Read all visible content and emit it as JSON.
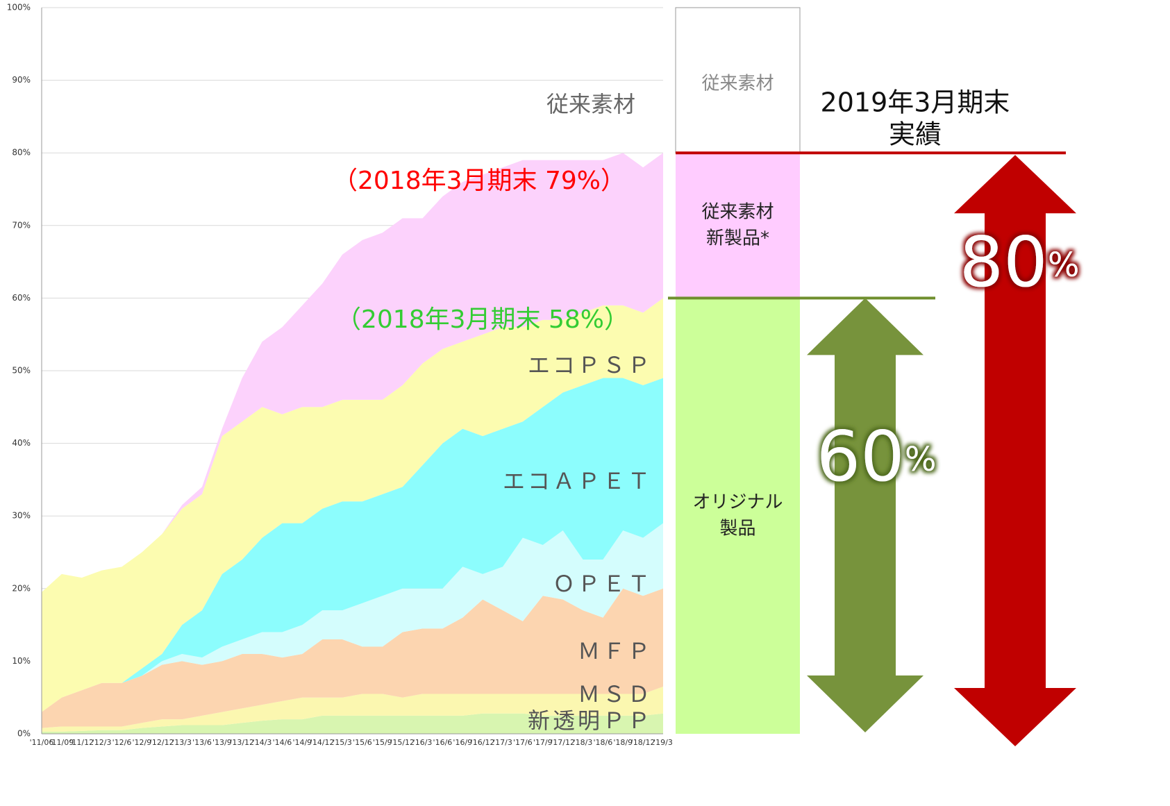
{
  "chart_data": {
    "type": "stacked_area",
    "x": [
      "'11/06",
      "'11/09",
      "'11/12",
      "'12/3",
      "'12/6",
      "'12/9",
      "'12/12",
      "'13/3",
      "'13/6",
      "'13/9",
      "'13/12",
      "'14/3",
      "'14/6",
      "'14/9",
      "'14/12",
      "'15/3",
      "'15/6",
      "'15/9",
      "'15/12",
      "'16/3",
      "'16/6",
      "'16/9",
      "'16/12",
      "'17/3",
      "'17/6",
      "'17/9",
      "'17/12",
      "'18/3",
      "'18/6",
      "'18/9",
      "'18/12",
      "'19/3"
    ],
    "series": [
      {
        "name": "新透明ＰＰ",
        "color": "#d8f5b0",
        "values": [
          0.3,
          0.3,
          0.4,
          0.5,
          0.5,
          0.8,
          1,
          1.2,
          1.2,
          1.2,
          1.5,
          1.8,
          2,
          2,
          2.5,
          2.5,
          2.5,
          2.5,
          2.5,
          2.5,
          2.5,
          2.5,
          2.8,
          2.8,
          2.8,
          2.5,
          2.5,
          2.5,
          2.5,
          2.5,
          2.5,
          2.8
        ]
      },
      {
        "name": "ＭＳＤ",
        "color": "#fbf7b0",
        "values": [
          0.5,
          0.7,
          0.6,
          0.5,
          0.5,
          0.7,
          1,
          0.8,
          1.3,
          1.8,
          2,
          2.2,
          2.5,
          3,
          2.5,
          2.5,
          3,
          3,
          2.5,
          3,
          3,
          3,
          2.7,
          2.7,
          2.7,
          3,
          3,
          3,
          3,
          3,
          3,
          3.7
        ]
      },
      {
        "name": "ＭＦＰ",
        "color": "#fcd5b0",
        "values": [
          2.2,
          4,
          5,
          6,
          6,
          6.5,
          7.5,
          8,
          7,
          7,
          7.5,
          7,
          6,
          6,
          8,
          8,
          6.5,
          6.5,
          9,
          9,
          9,
          10.5,
          13,
          11.5,
          10,
          13.5,
          13,
          11.5,
          10.5,
          14.5,
          13.5,
          13.5
        ]
      },
      {
        "name": "ＯＰＥＴ",
        "color": "#d4fdfd",
        "values": [
          0,
          0,
          0,
          0,
          0,
          0,
          0.5,
          1,
          1,
          2,
          2,
          3,
          3.5,
          4,
          4,
          4,
          6,
          7,
          6,
          5.5,
          5.5,
          7,
          3.5,
          6,
          11.5,
          7,
          9.5,
          7,
          8,
          8,
          8,
          9
        ]
      },
      {
        "name": "エコＡＰＥＴ",
        "color": "#8cfdfd",
        "values": [
          0,
          0,
          0,
          0,
          0,
          1,
          1,
          4,
          6.5,
          10,
          11,
          13,
          15,
          14,
          14,
          15,
          14,
          14,
          14,
          17,
          20,
          19,
          19,
          19,
          16,
          19,
          19,
          24,
          25,
          21,
          21,
          20
        ]
      },
      {
        "name": "エコＰＳＰ",
        "color": "#fcfcb0",
        "values": [
          16.5,
          17,
          15.5,
          15.5,
          16,
          16,
          16.5,
          16,
          16,
          19,
          19,
          18,
          15,
          16,
          14,
          14,
          14,
          13,
          14,
          14,
          13,
          12,
          14,
          14,
          13,
          12,
          10,
          10,
          10,
          10,
          10,
          11
        ]
      },
      {
        "color": "#fcd2fc",
        "values": [
          0,
          0,
          0,
          0,
          0,
          0,
          0,
          0.5,
          1,
          1,
          6,
          9,
          12,
          14,
          17,
          20,
          22,
          23,
          23,
          20,
          21,
          22,
          22,
          22,
          23,
          22,
          22,
          21,
          20,
          21,
          20,
          20
        ]
      }
    ],
    "ylim": [
      0,
      100
    ],
    "yticks": [
      {
        "value": 0,
        "label": "0%"
      },
      {
        "value": 10,
        "label": "10%"
      },
      {
        "value": 20,
        "label": "20%"
      },
      {
        "value": 30,
        "label": "30%"
      },
      {
        "value": 40,
        "label": "40%"
      },
      {
        "value": 50,
        "label": "50%"
      },
      {
        "value": 60,
        "label": "60%"
      },
      {
        "value": 70,
        "label": "70%"
      },
      {
        "value": 80,
        "label": "80%"
      },
      {
        "value": 90,
        "label": "90%"
      },
      {
        "value": 100,
        "label": "100%"
      }
    ],
    "grid": true,
    "annotations": {
      "remainder": "従来素材",
      "total_2018": "（2018年3月期末 79%）",
      "original_2018": "（2018年3月期末 58%）"
    }
  },
  "summary": {
    "title": "2019年3月期末",
    "subtitle": "実績",
    "bar": [
      {
        "lines": [
          "オリジナル",
          "製品"
        ],
        "value": 60,
        "color": "#ccff99"
      },
      {
        "lines": [
          "従来素材",
          "新製品*"
        ],
        "value": 20,
        "color": "#ffccff"
      },
      {
        "lines": [
          "従来素材"
        ],
        "value": 20,
        "color": "#ffffff"
      }
    ],
    "original_pct": 60,
    "total_pct": 80,
    "unit": "%"
  }
}
